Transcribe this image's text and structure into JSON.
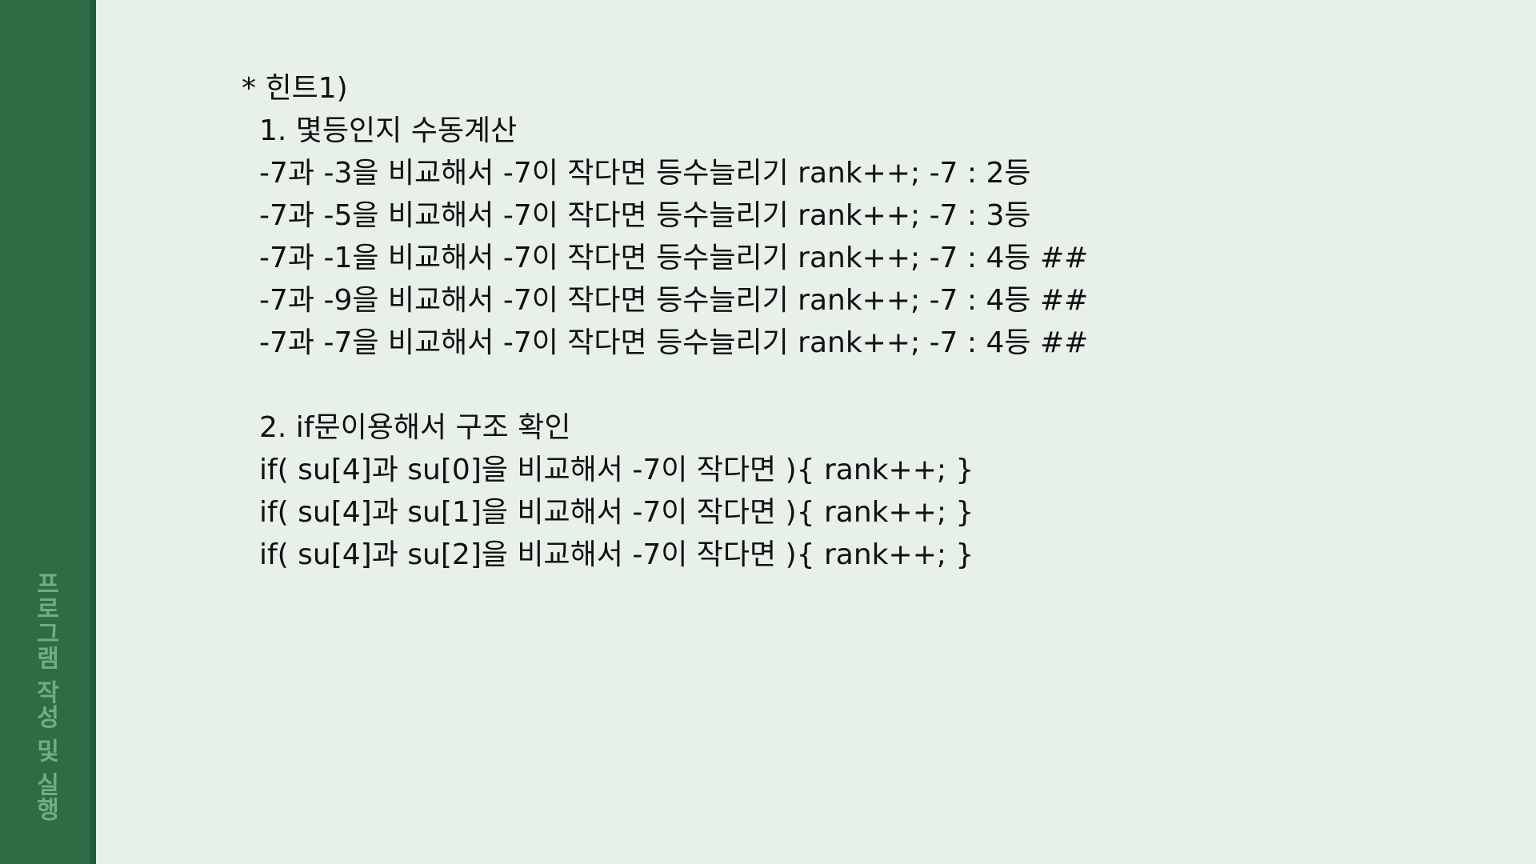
{
  "sidebar": {
    "title": "프로그램 작성 및 실행"
  },
  "hint": {
    "title": "* 힌트1)",
    "section1": {
      "heading": "1. 몇등인지 수동계산",
      "lines": [
        "-7과 -3을 비교해서 -7이 작다면 등수늘리기 rank++; -7 : 2등",
        "-7과 -5을 비교해서 -7이 작다면 등수늘리기 rank++; -7 : 3등",
        "-7과 -1을 비교해서 -7이 작다면 등수늘리기 rank++; -7 : 4등 ##",
        "-7과 -9을 비교해서 -7이 작다면 등수늘리기 rank++; -7 : 4등 ##",
        "-7과 -7을 비교해서 -7이 작다면 등수늘리기 rank++; -7 : 4등 ##"
      ]
    },
    "section2": {
      "heading": "2. if문이용해서 구조 확인",
      "lines": [
        "if( su[4]과 su[0]을 비교해서 -7이 작다면 ){ rank++; }",
        "if( su[4]과 su[1]을 비교해서 -7이 작다면 ){ rank++; }",
        "if( su[4]과 su[2]을 비교해서 -7이 작다면 ){ rank++; }"
      ]
    }
  },
  "colors": {
    "background": "#e8f0ea",
    "sidebar": "#2f6b45",
    "sidebar_text": "#6fae82",
    "text": "#111111"
  }
}
